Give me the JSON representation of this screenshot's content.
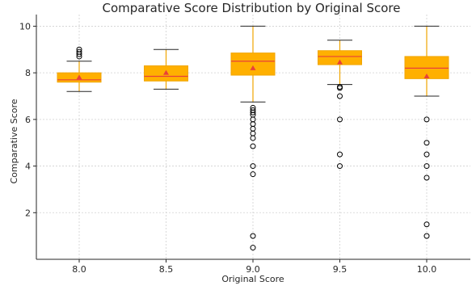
{
  "chart_data": {
    "type": "box",
    "title": "Comparative Score Distribution by Original Score",
    "xlabel": "Original Score",
    "ylabel": "Comparative Score",
    "categories": [
      "8.0",
      "8.5",
      "9.0",
      "9.5",
      "10.0"
    ],
    "ylim": [
      0,
      10.5
    ],
    "yticks": [
      2,
      4,
      6,
      8,
      10
    ],
    "grid": true,
    "colors": {
      "box_fill": "#ffb000",
      "box_edge": "#f0a500",
      "median": "#e8403a",
      "mean_marker": "#e8403a",
      "whisker": "#f0a500",
      "cap": "#262626",
      "flier": "#000000",
      "grid": "#d0d0d0",
      "axis": "#262626"
    },
    "boxes": [
      {
        "category": "8.0",
        "whisker_low": 7.2,
        "q1": 7.6,
        "median": 7.7,
        "q3": 8.0,
        "whisker_high": 8.5,
        "mean": 7.8,
        "fliers": [
          8.7,
          8.8,
          8.9,
          9.0
        ]
      },
      {
        "category": "8.5",
        "whisker_low": 7.3,
        "q1": 7.65,
        "median": 7.85,
        "q3": 8.3,
        "whisker_high": 9.0,
        "mean": 8.0,
        "fliers": []
      },
      {
        "category": "9.0",
        "whisker_low": 6.75,
        "q1": 7.9,
        "median": 8.5,
        "q3": 8.85,
        "whisker_high": 10.0,
        "mean": 8.2,
        "fliers": [
          6.5,
          6.4,
          6.3,
          6.2,
          6.0,
          5.8,
          5.6,
          5.4,
          5.2,
          4.85,
          4.0,
          3.65,
          1.0,
          0.5
        ]
      },
      {
        "category": "9.5",
        "whisker_low": 7.5,
        "q1": 8.35,
        "median": 8.7,
        "q3": 8.95,
        "whisker_high": 9.4,
        "mean": 8.45,
        "fliers": [
          7.4,
          7.35,
          7.0,
          6.0,
          4.5,
          4.0
        ]
      },
      {
        "category": "10.0",
        "whisker_low": 7.0,
        "q1": 7.75,
        "median": 8.2,
        "q3": 8.7,
        "whisker_high": 10.0,
        "mean": 7.85,
        "fliers": [
          6.0,
          5.0,
          4.5,
          4.0,
          3.5,
          1.5,
          1.0
        ]
      }
    ]
  }
}
